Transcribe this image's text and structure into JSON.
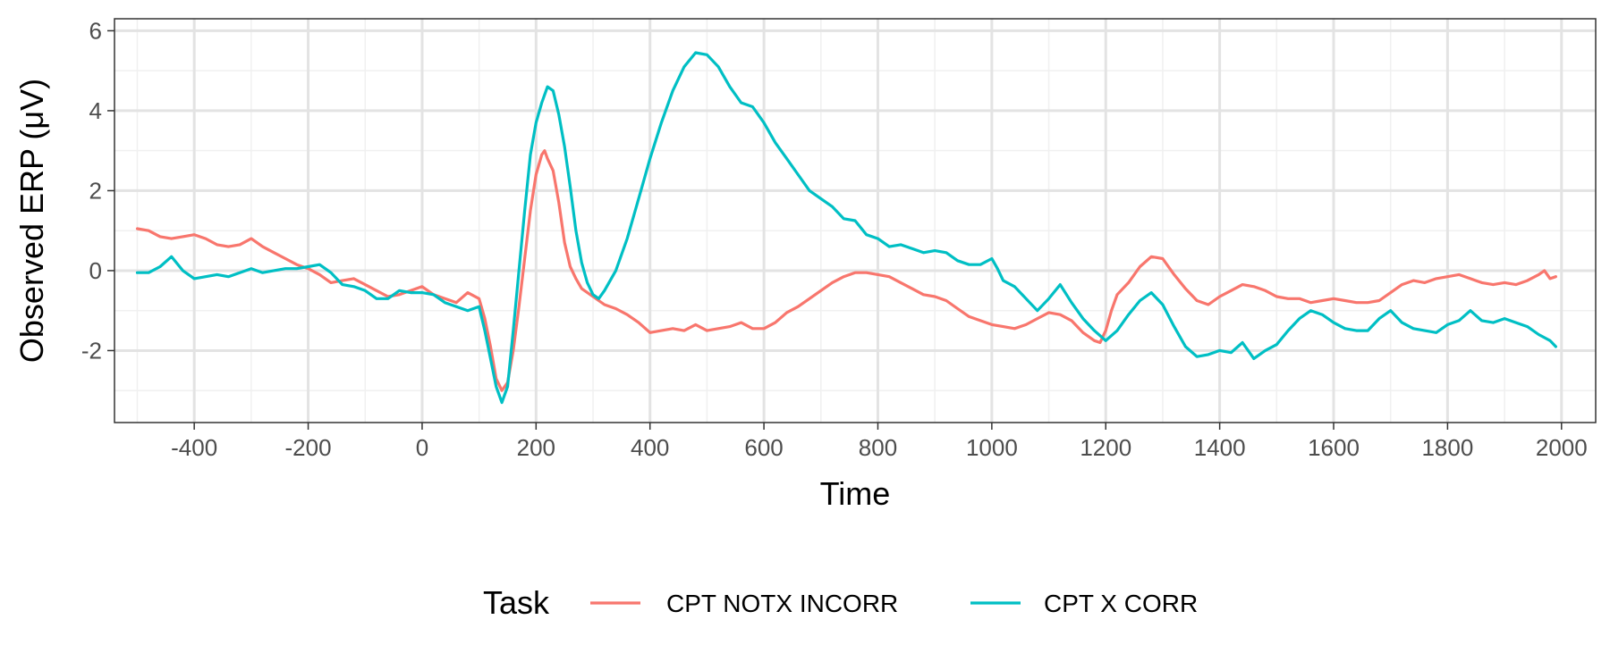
{
  "chart_data": {
    "type": "line",
    "title": "",
    "xlabel": "Time",
    "ylabel": "Observed ERP (μV)",
    "xlim": [
      -540,
      2060
    ],
    "ylim": [
      -3.8,
      6.3
    ],
    "x_ticks": [
      -400,
      -200,
      0,
      200,
      400,
      600,
      800,
      1000,
      1200,
      1400,
      1600,
      1800,
      2000
    ],
    "y_ticks": [
      -2,
      0,
      2,
      4,
      6
    ],
    "grid": true,
    "legend": {
      "title": "Task",
      "position": "bottom"
    },
    "series": [
      {
        "name": "CPT NOTX INCORR",
        "color": "#F8766D",
        "points": [
          [
            -500,
            1.05
          ],
          [
            -480,
            1.0
          ],
          [
            -460,
            0.85
          ],
          [
            -440,
            0.8
          ],
          [
            -420,
            0.85
          ],
          [
            -400,
            0.9
          ],
          [
            -380,
            0.8
          ],
          [
            -360,
            0.65
          ],
          [
            -340,
            0.6
          ],
          [
            -320,
            0.65
          ],
          [
            -300,
            0.8
          ],
          [
            -280,
            0.6
          ],
          [
            -260,
            0.45
          ],
          [
            -240,
            0.3
          ],
          [
            -220,
            0.15
          ],
          [
            -200,
            0.05
          ],
          [
            -180,
            -0.1
          ],
          [
            -160,
            -0.3
          ],
          [
            -140,
            -0.25
          ],
          [
            -120,
            -0.2
          ],
          [
            -100,
            -0.35
          ],
          [
            -80,
            -0.5
          ],
          [
            -60,
            -0.65
          ],
          [
            -40,
            -0.6
          ],
          [
            -20,
            -0.5
          ],
          [
            0,
            -0.4
          ],
          [
            20,
            -0.6
          ],
          [
            40,
            -0.7
          ],
          [
            60,
            -0.8
          ],
          [
            80,
            -0.55
          ],
          [
            100,
            -0.7
          ],
          [
            110,
            -1.2
          ],
          [
            120,
            -1.9
          ],
          [
            130,
            -2.7
          ],
          [
            140,
            -3.0
          ],
          [
            150,
            -2.8
          ],
          [
            160,
            -2.0
          ],
          [
            170,
            -0.9
          ],
          [
            180,
            0.3
          ],
          [
            190,
            1.5
          ],
          [
            200,
            2.4
          ],
          [
            210,
            2.9
          ],
          [
            215,
            3.0
          ],
          [
            220,
            2.8
          ],
          [
            230,
            2.5
          ],
          [
            240,
            1.7
          ],
          [
            250,
            0.7
          ],
          [
            260,
            0.1
          ],
          [
            270,
            -0.2
          ],
          [
            280,
            -0.45
          ],
          [
            300,
            -0.65
          ],
          [
            320,
            -0.85
          ],
          [
            340,
            -0.95
          ],
          [
            360,
            -1.1
          ],
          [
            380,
            -1.3
          ],
          [
            400,
            -1.55
          ],
          [
            420,
            -1.5
          ],
          [
            440,
            -1.45
          ],
          [
            460,
            -1.5
          ],
          [
            480,
            -1.35
          ],
          [
            500,
            -1.5
          ],
          [
            520,
            -1.45
          ],
          [
            540,
            -1.4
          ],
          [
            560,
            -1.3
          ],
          [
            580,
            -1.45
          ],
          [
            600,
            -1.45
          ],
          [
            620,
            -1.3
          ],
          [
            640,
            -1.05
          ],
          [
            660,
            -0.9
          ],
          [
            680,
            -0.7
          ],
          [
            700,
            -0.5
          ],
          [
            720,
            -0.3
          ],
          [
            740,
            -0.15
          ],
          [
            760,
            -0.05
          ],
          [
            780,
            -0.05
          ],
          [
            800,
            -0.1
          ],
          [
            820,
            -0.15
          ],
          [
            840,
            -0.3
          ],
          [
            860,
            -0.45
          ],
          [
            880,
            -0.6
          ],
          [
            900,
            -0.65
          ],
          [
            920,
            -0.75
          ],
          [
            940,
            -0.95
          ],
          [
            960,
            -1.15
          ],
          [
            980,
            -1.25
          ],
          [
            1000,
            -1.35
          ],
          [
            1020,
            -1.4
          ],
          [
            1040,
            -1.45
          ],
          [
            1060,
            -1.35
          ],
          [
            1080,
            -1.2
          ],
          [
            1100,
            -1.05
          ],
          [
            1120,
            -1.1
          ],
          [
            1140,
            -1.25
          ],
          [
            1160,
            -1.55
          ],
          [
            1180,
            -1.75
          ],
          [
            1190,
            -1.8
          ],
          [
            1200,
            -1.5
          ],
          [
            1210,
            -1.0
          ],
          [
            1220,
            -0.6
          ],
          [
            1240,
            -0.3
          ],
          [
            1260,
            0.1
          ],
          [
            1280,
            0.35
          ],
          [
            1300,
            0.3
          ],
          [
            1320,
            -0.1
          ],
          [
            1340,
            -0.45
          ],
          [
            1360,
            -0.75
          ],
          [
            1380,
            -0.85
          ],
          [
            1400,
            -0.65
          ],
          [
            1420,
            -0.5
          ],
          [
            1440,
            -0.35
          ],
          [
            1460,
            -0.4
          ],
          [
            1480,
            -0.5
          ],
          [
            1500,
            -0.65
          ],
          [
            1520,
            -0.7
          ],
          [
            1540,
            -0.7
          ],
          [
            1560,
            -0.8
          ],
          [
            1580,
            -0.75
          ],
          [
            1600,
            -0.7
          ],
          [
            1620,
            -0.75
          ],
          [
            1640,
            -0.8
          ],
          [
            1660,
            -0.8
          ],
          [
            1680,
            -0.75
          ],
          [
            1700,
            -0.55
          ],
          [
            1720,
            -0.35
          ],
          [
            1740,
            -0.25
          ],
          [
            1760,
            -0.3
          ],
          [
            1780,
            -0.2
          ],
          [
            1800,
            -0.15
          ],
          [
            1820,
            -0.1
          ],
          [
            1840,
            -0.2
          ],
          [
            1860,
            -0.3
          ],
          [
            1880,
            -0.35
          ],
          [
            1900,
            -0.3
          ],
          [
            1920,
            -0.35
          ],
          [
            1940,
            -0.25
          ],
          [
            1960,
            -0.1
          ],
          [
            1970,
            0.0
          ],
          [
            1980,
            -0.2
          ],
          [
            1990,
            -0.15
          ]
        ]
      },
      {
        "name": "CPT X CORR",
        "color": "#00BFC4",
        "points": [
          [
            -500,
            -0.05
          ],
          [
            -480,
            -0.05
          ],
          [
            -460,
            0.1
          ],
          [
            -440,
            0.35
          ],
          [
            -420,
            0.0
          ],
          [
            -400,
            -0.2
          ],
          [
            -380,
            -0.15
          ],
          [
            -360,
            -0.1
          ],
          [
            -340,
            -0.15
          ],
          [
            -320,
            -0.05
          ],
          [
            -300,
            0.05
          ],
          [
            -280,
            -0.05
          ],
          [
            -260,
            0.0
          ],
          [
            -240,
            0.05
          ],
          [
            -220,
            0.05
          ],
          [
            -200,
            0.1
          ],
          [
            -180,
            0.15
          ],
          [
            -160,
            -0.05
          ],
          [
            -140,
            -0.35
          ],
          [
            -120,
            -0.4
          ],
          [
            -100,
            -0.5
          ],
          [
            -80,
            -0.7
          ],
          [
            -60,
            -0.7
          ],
          [
            -40,
            -0.5
          ],
          [
            -20,
            -0.55
          ],
          [
            0,
            -0.55
          ],
          [
            20,
            -0.6
          ],
          [
            40,
            -0.8
          ],
          [
            60,
            -0.9
          ],
          [
            80,
            -1.0
          ],
          [
            100,
            -0.9
          ],
          [
            110,
            -1.5
          ],
          [
            120,
            -2.2
          ],
          [
            130,
            -2.9
          ],
          [
            140,
            -3.3
          ],
          [
            150,
            -2.9
          ],
          [
            160,
            -1.5
          ],
          [
            170,
            0.0
          ],
          [
            180,
            1.5
          ],
          [
            190,
            2.9
          ],
          [
            200,
            3.7
          ],
          [
            210,
            4.2
          ],
          [
            220,
            4.6
          ],
          [
            230,
            4.5
          ],
          [
            240,
            3.9
          ],
          [
            250,
            3.1
          ],
          [
            260,
            2.1
          ],
          [
            270,
            1.0
          ],
          [
            280,
            0.2
          ],
          [
            290,
            -0.3
          ],
          [
            300,
            -0.6
          ],
          [
            310,
            -0.7
          ],
          [
            320,
            -0.5
          ],
          [
            340,
            0.0
          ],
          [
            360,
            0.8
          ],
          [
            380,
            1.8
          ],
          [
            400,
            2.8
          ],
          [
            420,
            3.7
          ],
          [
            440,
            4.5
          ],
          [
            460,
            5.1
          ],
          [
            480,
            5.45
          ],
          [
            500,
            5.4
          ],
          [
            520,
            5.1
          ],
          [
            540,
            4.6
          ],
          [
            560,
            4.2
          ],
          [
            580,
            4.1
          ],
          [
            600,
            3.7
          ],
          [
            620,
            3.2
          ],
          [
            640,
            2.8
          ],
          [
            660,
            2.4
          ],
          [
            680,
            2.0
          ],
          [
            700,
            1.8
          ],
          [
            720,
            1.6
          ],
          [
            740,
            1.3
          ],
          [
            760,
            1.25
          ],
          [
            780,
            0.9
          ],
          [
            800,
            0.8
          ],
          [
            820,
            0.6
          ],
          [
            840,
            0.65
          ],
          [
            860,
            0.55
          ],
          [
            880,
            0.45
          ],
          [
            900,
            0.5
          ],
          [
            920,
            0.45
          ],
          [
            940,
            0.25
          ],
          [
            960,
            0.15
          ],
          [
            980,
            0.15
          ],
          [
            1000,
            0.3
          ],
          [
            1010,
            0.05
          ],
          [
            1020,
            -0.25
          ],
          [
            1040,
            -0.4
          ],
          [
            1060,
            -0.7
          ],
          [
            1080,
            -1.0
          ],
          [
            1100,
            -0.7
          ],
          [
            1120,
            -0.35
          ],
          [
            1140,
            -0.8
          ],
          [
            1160,
            -1.2
          ],
          [
            1180,
            -1.5
          ],
          [
            1200,
            -1.75
          ],
          [
            1220,
            -1.5
          ],
          [
            1240,
            -1.1
          ],
          [
            1260,
            -0.75
          ],
          [
            1280,
            -0.55
          ],
          [
            1300,
            -0.85
          ],
          [
            1320,
            -1.4
          ],
          [
            1340,
            -1.9
          ],
          [
            1360,
            -2.15
          ],
          [
            1380,
            -2.1
          ],
          [
            1400,
            -2.0
          ],
          [
            1420,
            -2.05
          ],
          [
            1440,
            -1.8
          ],
          [
            1460,
            -2.2
          ],
          [
            1480,
            -2.0
          ],
          [
            1500,
            -1.85
          ],
          [
            1520,
            -1.5
          ],
          [
            1540,
            -1.2
          ],
          [
            1560,
            -1.0
          ],
          [
            1580,
            -1.1
          ],
          [
            1600,
            -1.3
          ],
          [
            1620,
            -1.45
          ],
          [
            1640,
            -1.5
          ],
          [
            1660,
            -1.5
          ],
          [
            1680,
            -1.2
          ],
          [
            1700,
            -1.0
          ],
          [
            1720,
            -1.3
          ],
          [
            1740,
            -1.45
          ],
          [
            1760,
            -1.5
          ],
          [
            1780,
            -1.55
          ],
          [
            1800,
            -1.35
          ],
          [
            1820,
            -1.25
          ],
          [
            1840,
            -1.0
          ],
          [
            1860,
            -1.25
          ],
          [
            1880,
            -1.3
          ],
          [
            1900,
            -1.2
          ],
          [
            1920,
            -1.3
          ],
          [
            1940,
            -1.4
          ],
          [
            1960,
            -1.6
          ],
          [
            1980,
            -1.75
          ],
          [
            1990,
            -1.9
          ]
        ]
      }
    ]
  }
}
